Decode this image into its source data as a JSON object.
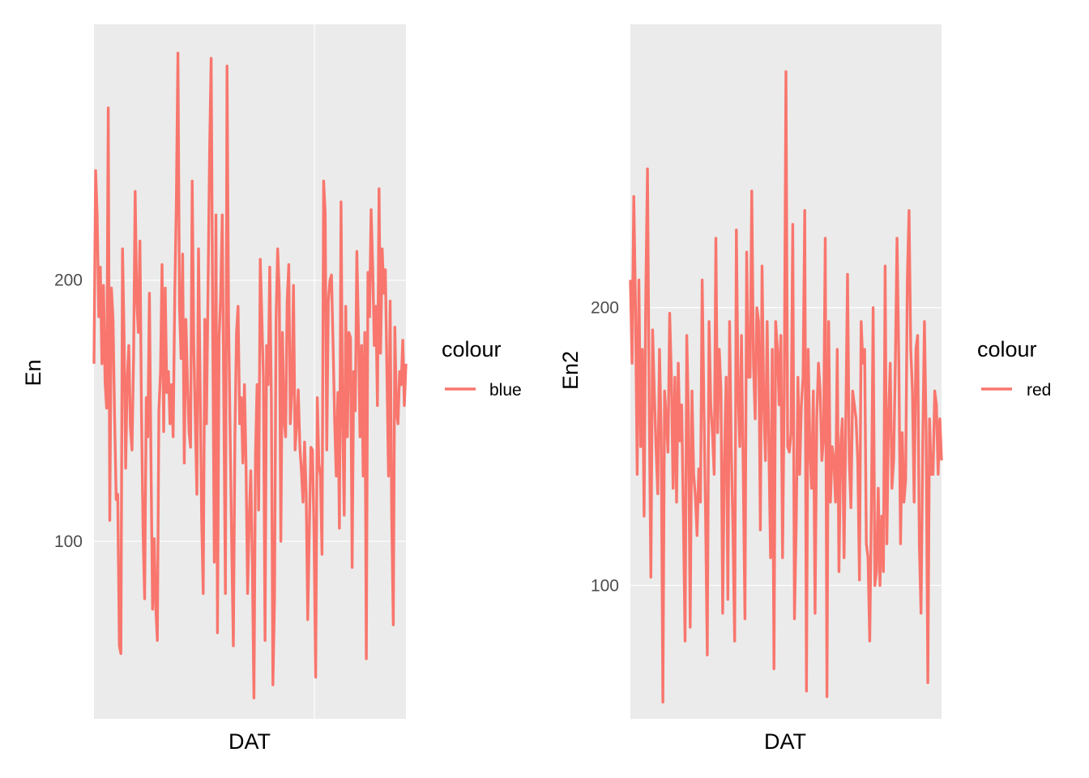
{
  "colors": {
    "panel_background": "#ebebeb",
    "grid_line": "#ffffff",
    "series_line": "#f8766d"
  },
  "chart_data": [
    {
      "type": "line",
      "xlabel": "DAT",
      "ylabel": "En",
      "ylim": [
        32,
        298
      ],
      "y_ticks": [
        {
          "value": 100,
          "label": "100"
        },
        {
          "value": 200,
          "label": "200"
        }
      ],
      "x_ticks_shown": false,
      "legend": {
        "title": "colour",
        "entries": [
          "blue"
        ],
        "placement": "right"
      },
      "series": [
        {
          "name": "blue",
          "values": [
            168,
            242,
            225,
            186,
            205,
            168,
            198,
            161,
            151,
            266,
            108,
            197,
            185,
            148,
            116,
            118,
            60,
            57,
            212,
            179,
            128,
            162,
            175,
            144,
            135,
            171,
            234,
            192,
            180,
            215,
            150,
            103,
            78,
            155,
            140,
            195,
            129,
            74,
            101,
            75,
            62,
            150,
            165,
            206,
            142,
            197,
            157,
            165,
            145,
            160,
            140,
            195,
            229,
            287,
            190,
            170,
            210,
            130,
            185,
            162,
            142,
            136,
            238,
            176,
            145,
            118,
            212,
            162,
            108,
            80,
            185,
            145,
            195,
            250,
            285,
            178,
            92,
            225,
            65,
            178,
            194,
            225,
            150,
            80,
            282,
            185,
            140,
            98,
            60,
            140,
            180,
            190,
            145,
            155,
            130,
            160,
            130,
            80,
            108,
            127,
            92,
            40,
            133,
            160,
            112,
            208,
            185,
            162,
            62,
            175,
            160,
            205,
            155,
            45,
            78,
            185,
            212,
            195,
            100,
            180,
            147,
            140,
            192,
            206,
            145,
            158,
            198,
            135,
            145,
            158,
            136,
            127,
            115,
            138,
            118,
            70,
            105,
            136,
            135,
            102,
            48,
            155,
            130,
            125,
            95,
            238,
            226,
            135,
            192,
            200,
            202,
            175,
            145,
            125,
            157,
            105,
            230,
            147,
            110,
            190,
            140,
            180,
            178,
            90,
            165,
            150,
            211,
            180,
            140,
            175,
            125,
            180,
            55,
            203,
            186,
            227,
            205,
            175,
            190,
            152,
            235,
            172,
            212,
            195,
            204,
            165,
            125,
            192,
            110,
            68,
            182,
            150,
            145,
            165,
            160,
            177,
            152,
            168
          ]
        }
      ]
    },
    {
      "type": "line",
      "xlabel": "DAT",
      "ylabel": "En2",
      "ylim": [
        52,
        302
      ],
      "y_ticks": [
        {
          "value": 100,
          "label": "100"
        },
        {
          "value": 200,
          "label": "200"
        }
      ],
      "x_ticks_shown": false,
      "legend": {
        "title": "colour",
        "entries": [
          "red"
        ],
        "placement": "right"
      },
      "series": [
        {
          "name": "red",
          "values": [
            210,
            180,
            240,
            200,
            140,
            210,
            150,
            185,
            125,
            205,
            250,
            165,
            103,
            192,
            170,
            150,
            133,
            185,
            155,
            58,
            170,
            160,
            148,
            198,
            175,
            135,
            175,
            130,
            180,
            152,
            165,
            125,
            80,
            190,
            160,
            85,
            170,
            140,
            132,
            118,
            142,
            130,
            210,
            165,
            125,
            75,
            195,
            165,
            155,
            140,
            225,
            155,
            185,
            170,
            90,
            145,
            175,
            95,
            195,
            150,
            120,
            80,
            228,
            170,
            150,
            190,
            140,
            88,
            220,
            175,
            175,
            242,
            180,
            160,
            200,
            195,
            120,
            215,
            165,
            145,
            195,
            150,
            110,
            185,
            70,
            195,
            185,
            165,
            190,
            110,
            170,
            285,
            150,
            148,
            155,
            230,
            88,
            123,
            175,
            140,
            165,
            175,
            235,
            62,
            185,
            150,
            135,
            170,
            90,
            160,
            180,
            170,
            145,
            153,
            225,
            60,
            195,
            130,
            150,
            145,
            130,
            185,
            105,
            150,
            160,
            110,
            158,
            212,
            145,
            128,
            170,
            165,
            160,
            145,
            102,
            195,
            180,
            185,
            115,
            110,
            80,
            130,
            200,
            100,
            105,
            135,
            100,
            125,
            105,
            215,
            115,
            160,
            180,
            135,
            145,
            180,
            225,
            180,
            115,
            155,
            130,
            138,
            210,
            235,
            185,
            170,
            130,
            185,
            190,
            115,
            90,
            150,
            195,
            155,
            65,
            160,
            140,
            140,
            170,
            165,
            140,
            160,
            145
          ]
        }
      ]
    }
  ]
}
